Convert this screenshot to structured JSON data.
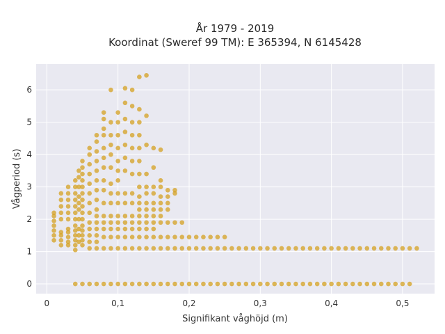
{
  "chart_data": {
    "type": "scatter",
    "title": [
      "År 1979 - 2019",
      "Koordinat (Sweref 99 TM): E 365394, N 6145428"
    ],
    "xlabel": "Signifikant våghöjd (m)",
    "ylabel": "Vågperiod (s)",
    "xlim": [
      -0.015,
      0.545
    ],
    "ylim": [
      -0.3,
      6.8
    ],
    "xticks": [
      0,
      0.1,
      0.2,
      0.3,
      0.4,
      0.5
    ],
    "xtick_labels": [
      "0",
      "0,1",
      "0,2",
      "0,3",
      "0,4",
      "0,5"
    ],
    "yticks": [
      0,
      1,
      2,
      3,
      4,
      5,
      6
    ],
    "ytick_labels": [
      "0",
      "1",
      "2",
      "3",
      "4",
      "5",
      "6"
    ],
    "grid": true,
    "background": "#e9e9f1",
    "point_color": "#d4a020",
    "points": [
      [
        0.01,
        1.35
      ],
      [
        0.01,
        1.5
      ],
      [
        0.01,
        1.65
      ],
      [
        0.01,
        1.8
      ],
      [
        0.01,
        1.95
      ],
      [
        0.01,
        2.1
      ],
      [
        0.01,
        2.2
      ],
      [
        0.02,
        1.2
      ],
      [
        0.02,
        1.35
      ],
      [
        0.02,
        1.5
      ],
      [
        0.02,
        1.6
      ],
      [
        0.02,
        2.0
      ],
      [
        0.02,
        2.2
      ],
      [
        0.02,
        2.4
      ],
      [
        0.02,
        2.6
      ],
      [
        0.02,
        2.8
      ],
      [
        0.03,
        1.2
      ],
      [
        0.03,
        1.3
      ],
      [
        0.03,
        1.45
      ],
      [
        0.03,
        1.6
      ],
      [
        0.03,
        1.7
      ],
      [
        0.03,
        2.0
      ],
      [
        0.03,
        2.2
      ],
      [
        0.03,
        2.4
      ],
      [
        0.03,
        2.6
      ],
      [
        0.03,
        2.8
      ],
      [
        0.03,
        3.0
      ],
      [
        0.04,
        1.05
      ],
      [
        0.04,
        1.2
      ],
      [
        0.04,
        1.35
      ],
      [
        0.04,
        1.5
      ],
      [
        0.04,
        1.65
      ],
      [
        0.04,
        1.8
      ],
      [
        0.04,
        2.0
      ],
      [
        0.04,
        2.2
      ],
      [
        0.04,
        2.4
      ],
      [
        0.04,
        2.6
      ],
      [
        0.04,
        2.8
      ],
      [
        0.04,
        3.0
      ],
      [
        0.04,
        3.2
      ],
      [
        0.04,
        0.0
      ],
      [
        0.045,
        1.3
      ],
      [
        0.045,
        1.5
      ],
      [
        0.045,
        1.7
      ],
      [
        0.045,
        2.0
      ],
      [
        0.045,
        2.3
      ],
      [
        0.045,
        2.5
      ],
      [
        0.045,
        2.7
      ],
      [
        0.045,
        3.0
      ],
      [
        0.045,
        3.3
      ],
      [
        0.045,
        3.5
      ],
      [
        0.05,
        1.2
      ],
      [
        0.05,
        1.35
      ],
      [
        0.05,
        1.5
      ],
      [
        0.05,
        1.65
      ],
      [
        0.05,
        1.8
      ],
      [
        0.05,
        2.0
      ],
      [
        0.05,
        2.2
      ],
      [
        0.05,
        2.4
      ],
      [
        0.05,
        2.6
      ],
      [
        0.05,
        2.8
      ],
      [
        0.05,
        3.0
      ],
      [
        0.05,
        3.2
      ],
      [
        0.05,
        3.4
      ],
      [
        0.05,
        3.6
      ],
      [
        0.05,
        3.8
      ],
      [
        0.05,
        0.0
      ],
      [
        0.06,
        1.1
      ],
      [
        0.06,
        1.3
      ],
      [
        0.06,
        1.5
      ],
      [
        0.06,
        1.7
      ],
      [
        0.06,
        1.9
      ],
      [
        0.06,
        2.2
      ],
      [
        0.06,
        2.5
      ],
      [
        0.06,
        2.8
      ],
      [
        0.06,
        3.1
      ],
      [
        0.06,
        3.4
      ],
      [
        0.06,
        3.7
      ],
      [
        0.06,
        4.0
      ],
      [
        0.06,
        4.2
      ],
      [
        0.06,
        0.0
      ],
      [
        0.07,
        1.1
      ],
      [
        0.07,
        1.3
      ],
      [
        0.07,
        1.5
      ],
      [
        0.07,
        1.7
      ],
      [
        0.07,
        1.9
      ],
      [
        0.07,
        2.1
      ],
      [
        0.07,
        2.3
      ],
      [
        0.07,
        2.6
      ],
      [
        0.07,
        2.9
      ],
      [
        0.07,
        3.2
      ],
      [
        0.07,
        3.5
      ],
      [
        0.07,
        3.8
      ],
      [
        0.07,
        4.1
      ],
      [
        0.07,
        4.4
      ],
      [
        0.07,
        4.6
      ],
      [
        0.07,
        0.0
      ],
      [
        0.08,
        1.1
      ],
      [
        0.08,
        1.45
      ],
      [
        0.08,
        1.7
      ],
      [
        0.08,
        1.9
      ],
      [
        0.08,
        2.1
      ],
      [
        0.08,
        2.5
      ],
      [
        0.08,
        2.9
      ],
      [
        0.08,
        3.2
      ],
      [
        0.08,
        3.6
      ],
      [
        0.08,
        3.9
      ],
      [
        0.08,
        4.2
      ],
      [
        0.08,
        4.6
      ],
      [
        0.08,
        4.8
      ],
      [
        0.08,
        5.1
      ],
      [
        0.08,
        5.3
      ],
      [
        0.08,
        0.0
      ],
      [
        0.09,
        1.1
      ],
      [
        0.09,
        1.45
      ],
      [
        0.09,
        1.7
      ],
      [
        0.09,
        1.9
      ],
      [
        0.09,
        2.1
      ],
      [
        0.09,
        2.5
      ],
      [
        0.09,
        2.8
      ],
      [
        0.09,
        3.1
      ],
      [
        0.09,
        3.6
      ],
      [
        0.09,
        4.0
      ],
      [
        0.09,
        4.3
      ],
      [
        0.09,
        4.6
      ],
      [
        0.09,
        5.0
      ],
      [
        0.09,
        6.0
      ],
      [
        0.09,
        0.0
      ],
      [
        0.1,
        1.1
      ],
      [
        0.1,
        1.45
      ],
      [
        0.1,
        1.7
      ],
      [
        0.1,
        1.9
      ],
      [
        0.1,
        2.1
      ],
      [
        0.1,
        2.5
      ],
      [
        0.1,
        2.8
      ],
      [
        0.1,
        3.2
      ],
      [
        0.1,
        3.5
      ],
      [
        0.1,
        3.8
      ],
      [
        0.1,
        4.2
      ],
      [
        0.1,
        4.6
      ],
      [
        0.1,
        5.0
      ],
      [
        0.1,
        5.3
      ],
      [
        0.1,
        0.0
      ],
      [
        0.11,
        1.1
      ],
      [
        0.11,
        1.45
      ],
      [
        0.11,
        1.7
      ],
      [
        0.11,
        1.9
      ],
      [
        0.11,
        2.1
      ],
      [
        0.11,
        2.5
      ],
      [
        0.11,
        2.8
      ],
      [
        0.11,
        3.5
      ],
      [
        0.11,
        3.9
      ],
      [
        0.11,
        4.3
      ],
      [
        0.11,
        4.7
      ],
      [
        0.11,
        5.1
      ],
      [
        0.11,
        5.6
      ],
      [
        0.11,
        6.05
      ],
      [
        0.11,
        0.0
      ],
      [
        0.12,
        1.1
      ],
      [
        0.12,
        1.45
      ],
      [
        0.12,
        1.7
      ],
      [
        0.12,
        1.9
      ],
      [
        0.12,
        2.1
      ],
      [
        0.12,
        2.5
      ],
      [
        0.12,
        2.8
      ],
      [
        0.12,
        3.4
      ],
      [
        0.12,
        3.8
      ],
      [
        0.12,
        4.2
      ],
      [
        0.12,
        4.6
      ],
      [
        0.12,
        5.0
      ],
      [
        0.12,
        5.5
      ],
      [
        0.12,
        6.0
      ],
      [
        0.12,
        0.0
      ],
      [
        0.13,
        1.1
      ],
      [
        0.13,
        1.45
      ],
      [
        0.13,
        1.7
      ],
      [
        0.13,
        1.9
      ],
      [
        0.13,
        2.1
      ],
      [
        0.13,
        2.3
      ],
      [
        0.13,
        2.5
      ],
      [
        0.13,
        2.7
      ],
      [
        0.13,
        3.0
      ],
      [
        0.13,
        3.4
      ],
      [
        0.13,
        3.8
      ],
      [
        0.13,
        4.2
      ],
      [
        0.13,
        4.6
      ],
      [
        0.13,
        5.0
      ],
      [
        0.13,
        5.4
      ],
      [
        0.13,
        6.4
      ],
      [
        0.13,
        0.0
      ],
      [
        0.14,
        1.1
      ],
      [
        0.14,
        1.45
      ],
      [
        0.14,
        1.7
      ],
      [
        0.14,
        1.9
      ],
      [
        0.14,
        2.1
      ],
      [
        0.14,
        2.3
      ],
      [
        0.14,
        2.5
      ],
      [
        0.14,
        2.8
      ],
      [
        0.14,
        3.0
      ],
      [
        0.14,
        3.4
      ],
      [
        0.14,
        4.3
      ],
      [
        0.14,
        5.2
      ],
      [
        0.14,
        6.45
      ],
      [
        0.14,
        0.0
      ],
      [
        0.15,
        1.1
      ],
      [
        0.15,
        1.45
      ],
      [
        0.15,
        1.7
      ],
      [
        0.15,
        1.9
      ],
      [
        0.15,
        2.1
      ],
      [
        0.15,
        2.3
      ],
      [
        0.15,
        2.5
      ],
      [
        0.15,
        2.8
      ],
      [
        0.15,
        3.0
      ],
      [
        0.15,
        3.6
      ],
      [
        0.15,
        4.2
      ],
      [
        0.15,
        0.0
      ],
      [
        0.16,
        1.1
      ],
      [
        0.16,
        1.45
      ],
      [
        0.16,
        1.9
      ],
      [
        0.16,
        2.1
      ],
      [
        0.16,
        2.3
      ],
      [
        0.16,
        2.5
      ],
      [
        0.16,
        2.7
      ],
      [
        0.16,
        3.0
      ],
      [
        0.16,
        3.2
      ],
      [
        0.16,
        4.15
      ],
      [
        0.16,
        0.0
      ],
      [
        0.17,
        1.1
      ],
      [
        0.17,
        1.45
      ],
      [
        0.17,
        1.9
      ],
      [
        0.17,
        2.3
      ],
      [
        0.17,
        2.5
      ],
      [
        0.17,
        2.7
      ],
      [
        0.17,
        2.9
      ],
      [
        0.17,
        0.0
      ],
      [
        0.18,
        1.1
      ],
      [
        0.18,
        1.45
      ],
      [
        0.18,
        1.9
      ],
      [
        0.18,
        2.8
      ],
      [
        0.18,
        2.9
      ],
      [
        0.18,
        0.0
      ],
      [
        0.19,
        1.1
      ],
      [
        0.19,
        1.45
      ],
      [
        0.19,
        1.9
      ],
      [
        0.19,
        0.0
      ],
      [
        0.2,
        1.1
      ],
      [
        0.2,
        1.45
      ],
      [
        0.2,
        0.0
      ],
      [
        0.21,
        1.1
      ],
      [
        0.21,
        1.45
      ],
      [
        0.21,
        0.0
      ],
      [
        0.22,
        1.1
      ],
      [
        0.22,
        1.45
      ],
      [
        0.22,
        0.0
      ],
      [
        0.23,
        1.1
      ],
      [
        0.23,
        1.45
      ],
      [
        0.23,
        0.0
      ],
      [
        0.24,
        1.1
      ],
      [
        0.24,
        1.45
      ],
      [
        0.24,
        0.0
      ],
      [
        0.25,
        1.1
      ],
      [
        0.25,
        1.45
      ],
      [
        0.25,
        0.0
      ],
      [
        0.26,
        1.1
      ],
      [
        0.26,
        0.0
      ],
      [
        0.27,
        1.1
      ],
      [
        0.27,
        0.0
      ],
      [
        0.28,
        1.1
      ],
      [
        0.28,
        0.0
      ],
      [
        0.29,
        1.1
      ],
      [
        0.29,
        0.0
      ],
      [
        0.3,
        1.1
      ],
      [
        0.3,
        0.0
      ],
      [
        0.31,
        1.1
      ],
      [
        0.31,
        0.0
      ],
      [
        0.32,
        1.1
      ],
      [
        0.32,
        0.0
      ],
      [
        0.33,
        1.1
      ],
      [
        0.33,
        0.0
      ],
      [
        0.34,
        1.1
      ],
      [
        0.34,
        0.0
      ],
      [
        0.35,
        1.1
      ],
      [
        0.35,
        0.0
      ],
      [
        0.36,
        1.1
      ],
      [
        0.36,
        0.0
      ],
      [
        0.37,
        1.1
      ],
      [
        0.37,
        0.0
      ],
      [
        0.38,
        1.1
      ],
      [
        0.38,
        0.0
      ],
      [
        0.39,
        1.1
      ],
      [
        0.39,
        0.0
      ],
      [
        0.4,
        1.1
      ],
      [
        0.4,
        0.0
      ],
      [
        0.41,
        1.1
      ],
      [
        0.41,
        0.0
      ],
      [
        0.42,
        1.1
      ],
      [
        0.42,
        0.0
      ],
      [
        0.43,
        1.1
      ],
      [
        0.43,
        0.0
      ],
      [
        0.44,
        1.1
      ],
      [
        0.44,
        0.0
      ],
      [
        0.45,
        1.1
      ],
      [
        0.45,
        0.0
      ],
      [
        0.46,
        1.1
      ],
      [
        0.46,
        0.0
      ],
      [
        0.47,
        1.1
      ],
      [
        0.47,
        0.0
      ],
      [
        0.48,
        1.1
      ],
      [
        0.48,
        0.0
      ],
      [
        0.49,
        1.1
      ],
      [
        0.49,
        0.0
      ],
      [
        0.5,
        1.1
      ],
      [
        0.5,
        0.0
      ],
      [
        0.51,
        1.1
      ],
      [
        0.51,
        0.0
      ],
      [
        0.52,
        1.1
      ]
    ]
  }
}
